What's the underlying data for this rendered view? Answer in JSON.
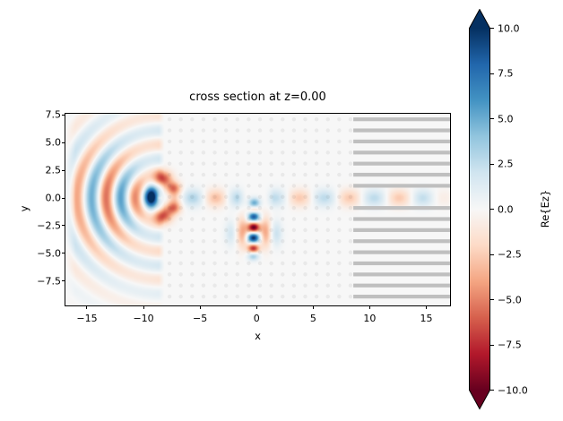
{
  "figure": {
    "title": "cross section at z=0.00",
    "xlabel": "x",
    "ylabel": "y",
    "colorbar_label": "Re{Ez}",
    "background_color": "#ffffff",
    "spine_color": "#000000"
  },
  "chart_data": {
    "type": "heatmap",
    "title": "cross section at z=0.00",
    "xlabel": "x",
    "ylabel": "y",
    "xlim": [
      -16.9,
      17.1
    ],
    "ylim": [
      -9.7,
      7.6
    ],
    "grid": false,
    "xtick_values": [
      -15,
      -10,
      -5,
      0,
      5,
      10,
      15
    ],
    "xtick_labels": [
      "−15",
      "−10",
      "−5",
      "0",
      "5",
      "10",
      "15"
    ],
    "ytick_values": [
      7.5,
      5,
      2.5,
      0,
      -2.5,
      -5,
      -7.5
    ],
    "ytick_labels": [
      "7.5",
      "5.0",
      "2.5",
      "0.0",
      "−2.5",
      "−5.0",
      "−7.5"
    ],
    "colorbar": {
      "label": "Re{Ez}",
      "vmin": -10,
      "vmax": 10,
      "extend": "both",
      "cmap": "RdBu",
      "tick_values": [
        10,
        7.5,
        5,
        2.5,
        0,
        -2.5,
        -5,
        -7.5,
        -10
      ],
      "tick_labels": [
        "10.0",
        "7.5",
        "5.0",
        "2.5",
        "0.0",
        "−2.5",
        "−5.0",
        "−7.5",
        "−10.0"
      ]
    },
    "cmap_stops_low_to_high": [
      "#67001f",
      "#b2182b",
      "#d6604d",
      "#f4a582",
      "#fddbc7",
      "#f7f7f7",
      "#d1e5f0",
      "#92c5de",
      "#4393c3",
      "#2166ac",
      "#053061"
    ],
    "field_model": {
      "description": "Re{Ez} approximation: radiating fan left of crystal, guided row along y=0, dipole source stack at (0,-3)",
      "fan": {
        "cx": -8.5,
        "cy": 0,
        "wavelength": 2.6,
        "phase": -2.2,
        "amp": 5.5,
        "r0": 4.2,
        "rw": 5.5,
        "ang_m": 1.2,
        "ang_floor": 0.3,
        "x_cut": -8.15,
        "cut_w": 0.5,
        "left_fade": 0.9
      },
      "row_right": {
        "amp": 2.6,
        "period": 4.4,
        "x_peak": 1.6,
        "sigma_y": 0.78,
        "x_on": 0.7,
        "ramp": 0.8,
        "x_fade": 14.2,
        "fade_w": 5
      },
      "row_left": {
        "amp": 3.0,
        "period": 4.1,
        "x_peak": -1.55,
        "sigma_y": 0.8,
        "x_on": -8.0,
        "x_off": -0.9,
        "ramp": 0.8
      },
      "blobs": [
        [
          -9.25,
          0.1,
          0.6,
          0.9,
          9.0
        ],
        [
          -8.3,
          1.75,
          0.8,
          0.7,
          -6.5
        ],
        [
          -8.3,
          -1.6,
          0.8,
          0.7,
          -6.5
        ],
        [
          -7.35,
          0.9,
          0.65,
          0.55,
          -5.0
        ],
        [
          -7.35,
          -0.9,
          0.65,
          0.55,
          -5.0
        ],
        [
          -0.2,
          -0.45,
          0.5,
          0.45,
          5.0
        ],
        [
          -0.2,
          -1.05,
          0.45,
          0.33,
          -2.5
        ],
        [
          -0.25,
          -1.7,
          0.5,
          0.42,
          8.5
        ],
        [
          -0.25,
          -2.66,
          0.52,
          0.45,
          -10.0
        ],
        [
          -0.28,
          -3.6,
          0.52,
          0.45,
          10.0
        ],
        [
          -0.28,
          -4.55,
          0.5,
          0.42,
          -7.5
        ],
        [
          -0.3,
          -5.25,
          0.5,
          0.4,
          3.5
        ],
        [
          -1.25,
          -3.1,
          0.5,
          1.35,
          -3.8
        ],
        [
          0.8,
          -3.1,
          0.48,
          1.35,
          -3.8
        ],
        [
          1.75,
          -3.2,
          0.5,
          1.1,
          2.2
        ],
        [
          -2.3,
          -3.2,
          0.5,
          1.1,
          1.8
        ]
      ]
    },
    "structure": {
      "rod_lattice_dots": {
        "x_start": -7.7,
        "x_end": 8.3,
        "y_start": -8.9,
        "y_end": 7.1,
        "spacing": 1,
        "radius": 0.175,
        "color": "rgba(60,60,60,0.07)"
      },
      "grating_stripes": {
        "x_start": 8.55,
        "y_offset": 0.1,
        "j_min": -9,
        "j_max": 7,
        "j_gap": 0,
        "thickness": 0.34,
        "color": "#bfbfbf"
      }
    }
  }
}
